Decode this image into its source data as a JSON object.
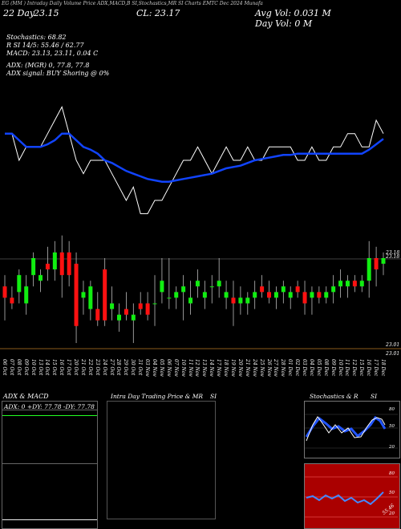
{
  "header": {
    "top_strip": "EG (MM  )  Intraday Daily Volume Price ADX,MACD,B  SI,Stochastics,MR  SI Charts  EMTC   Dec 2024 Munafa",
    "date_labels": [
      "22 Day",
      "23.15",
      "CL: 23.17",
      "Avg Vol: 0.031 M",
      "Day Vol: 0   M"
    ],
    "stoch": "Stochastics: 68.82",
    "rsi": "R            SI 14/5: 55.46  /  62.77",
    "macd": "MACD: 23.13,  23.11,  0.04   C",
    "adx": "ADX:                              (MGR) 0, 77.8,  77.8",
    "adx_signal": "ADX  signal:                      BUY Shoring @ 0%"
  },
  "price_labels": {
    "top": "23.18",
    "top2": "23.18",
    "bottom": "23.01",
    "bottom2": "23.01"
  },
  "x_labels": [
    "06 Oct",
    "07 Oct",
    "08 Oct",
    "09 Oct",
    "10 Oct",
    "13 Oct",
    "14 Oct",
    "15 Oct",
    "16 Oct",
    "17 Oct",
    "20 Oct",
    "21 Oct",
    "22 Oct",
    "23 Oct",
    "24 Oct",
    "27 Oct",
    "28 Oct",
    "29 Oct",
    "30 Oct",
    "31 Oct",
    "03 Nov",
    "04 Nov",
    "05 Nov",
    "06 Nov",
    "07 Nov",
    "10 Nov",
    "11 Nov",
    "12 Nov",
    "13 Nov",
    "14 Nov",
    "17 Nov",
    "18 Nov",
    "19 Nov",
    "20 Nov",
    "21 Nov",
    "24 Nov",
    "25 Nov",
    "26 Nov",
    "27 Nov",
    "28 Nov",
    "01 Dec",
    "02 Dec",
    "03 Dec",
    "04 Dec",
    "05 Dec",
    "08 Dec",
    "09 Dec",
    "10 Dec",
    "11 Dec",
    "12 Dec",
    "15 Dec",
    "16 Dec",
    "17 Dec",
    "18 Dec"
  ],
  "panels": {
    "adx_title": "ADX  & MACD",
    "adx_readout": "ADX: 0   +DY: 77.78   -DY: 77.78",
    "intraday_title": "Intra  Day Trading Price  & MR",
    "intraday_si": "SI",
    "stoch_title": "Stochastics & R",
    "stoch_si": "SI",
    "stoch_ticks": [
      "80",
      "50",
      "20"
    ],
    "rsi_ticks": [
      "80",
      "50",
      "20"
    ],
    "rsi_value": "55.46"
  },
  "colors": {
    "up": "#11ee11",
    "down": "#ff1111",
    "ema": "#1144ff",
    "bg": "#000000",
    "rsi_bg": "#aa0000",
    "bluebox": "#0000cc",
    "adx_line": "#22ff22"
  },
  "chart_data": {
    "type": "candlestick",
    "ylim": [
      22.9,
      23.3
    ],
    "candles": [
      [
        23.12,
        23.14,
        23.06,
        23.1
      ],
      [
        23.1,
        23.12,
        23.08,
        23.09
      ],
      [
        23.11,
        23.15,
        23.09,
        23.14
      ],
      [
        23.09,
        23.14,
        23.07,
        23.12
      ],
      [
        23.14,
        23.18,
        23.12,
        23.17
      ],
      [
        23.13,
        23.15,
        23.11,
        23.14
      ],
      [
        23.16,
        23.19,
        23.13,
        23.15
      ],
      [
        23.15,
        23.2,
        23.13,
        23.18
      ],
      [
        23.18,
        23.21,
        23.1,
        23.14
      ],
      [
        23.18,
        23.2,
        23.12,
        23.14
      ],
      [
        23.16,
        23.18,
        23.02,
        23.05
      ],
      [
        23.1,
        23.13,
        23.07,
        23.11
      ],
      [
        23.08,
        23.13,
        23.06,
        23.12
      ],
      [
        23.08,
        23.11,
        23.05,
        23.06
      ],
      [
        23.15,
        23.17,
        23.05,
        23.06
      ],
      [
        23.08,
        23.12,
        23.06,
        23.09
      ],
      [
        23.06,
        23.09,
        23.04,
        23.07
      ],
      [
        23.08,
        23.11,
        23.06,
        23.07
      ],
      [
        23.06,
        23.09,
        23.02,
        23.07
      ],
      [
        23.09,
        23.11,
        23.07,
        23.08
      ],
      [
        23.09,
        23.11,
        23.06,
        23.07
      ],
      [
        23.09,
        23.14,
        23.05,
        23.09
      ],
      [
        23.11,
        23.17,
        23.09,
        23.13
      ],
      [
        23.1,
        23.17,
        23.08,
        23.1
      ],
      [
        23.1,
        23.12,
        23.08,
        23.11
      ],
      [
        23.11,
        23.14,
        23.06,
        23.12
      ],
      [
        23.09,
        23.13,
        23.07,
        23.1
      ],
      [
        23.12,
        23.15,
        23.1,
        23.13
      ],
      [
        23.1,
        23.13,
        23.08,
        23.11
      ],
      [
        23.12,
        23.14,
        23.09,
        23.12
      ],
      [
        23.12,
        23.17,
        23.1,
        23.13
      ],
      [
        23.1,
        23.13,
        23.08,
        23.11
      ],
      [
        23.1,
        23.13,
        23.05,
        23.09
      ],
      [
        23.09,
        23.12,
        23.07,
        23.1
      ],
      [
        23.09,
        23.11,
        23.07,
        23.1
      ],
      [
        23.1,
        23.13,
        23.08,
        23.11
      ],
      [
        23.12,
        23.14,
        23.1,
        23.11
      ],
      [
        23.11,
        23.13,
        23.09,
        23.1
      ],
      [
        23.1,
        23.12,
        23.08,
        23.11
      ],
      [
        23.11,
        23.13,
        23.09,
        23.12
      ],
      [
        23.1,
        23.12,
        23.08,
        23.11
      ],
      [
        23.12,
        23.13,
        23.1,
        23.11
      ],
      [
        23.11,
        23.13,
        23.07,
        23.09
      ],
      [
        23.1,
        23.12,
        23.07,
        23.11
      ],
      [
        23.11,
        23.12,
        23.09,
        23.1
      ],
      [
        23.1,
        23.12,
        23.09,
        23.11
      ],
      [
        23.11,
        23.14,
        23.09,
        23.12
      ],
      [
        23.12,
        23.15,
        23.1,
        23.13
      ],
      [
        23.12,
        23.14,
        23.1,
        23.13
      ],
      [
        23.13,
        23.14,
        23.11,
        23.12
      ],
      [
        23.12,
        23.14,
        23.11,
        23.13
      ],
      [
        23.13,
        23.2,
        23.1,
        23.17
      ],
      [
        23.17,
        23.19,
        23.12,
        23.15
      ],
      [
        23.16,
        23.18,
        23.14,
        23.17
      ]
    ],
    "ema": [
      23.14,
      23.14,
      23.135,
      23.13,
      23.13,
      23.13,
      23.132,
      23.135,
      23.14,
      23.14,
      23.135,
      23.13,
      23.128,
      23.125,
      23.12,
      23.118,
      23.115,
      23.112,
      23.11,
      23.108,
      23.106,
      23.105,
      23.104,
      23.104,
      23.105,
      23.106,
      23.107,
      23.108,
      23.109,
      23.11,
      23.112,
      23.114,
      23.115,
      23.116,
      23.118,
      23.12,
      23.121,
      23.122,
      23.123,
      23.124,
      23.124,
      23.125,
      23.125,
      23.125,
      23.125,
      23.125,
      23.125,
      23.125,
      23.125,
      23.125,
      23.125,
      23.128,
      23.132,
      23.136
    ],
    "close": [
      23.14,
      23.14,
      23.12,
      23.13,
      23.13,
      23.13,
      23.14,
      23.15,
      23.16,
      23.14,
      23.12,
      23.11,
      23.12,
      23.12,
      23.12,
      23.11,
      23.1,
      23.09,
      23.1,
      23.08,
      23.08,
      23.09,
      23.09,
      23.1,
      23.11,
      23.12,
      23.12,
      23.13,
      23.12,
      23.11,
      23.12,
      23.13,
      23.12,
      23.12,
      23.13,
      23.12,
      23.12,
      23.13,
      23.13,
      23.13,
      23.13,
      23.12,
      23.12,
      23.13,
      23.12,
      23.12,
      23.13,
      23.13,
      23.14,
      23.14,
      23.13,
      23.13,
      23.15,
      23.14
    ]
  }
}
